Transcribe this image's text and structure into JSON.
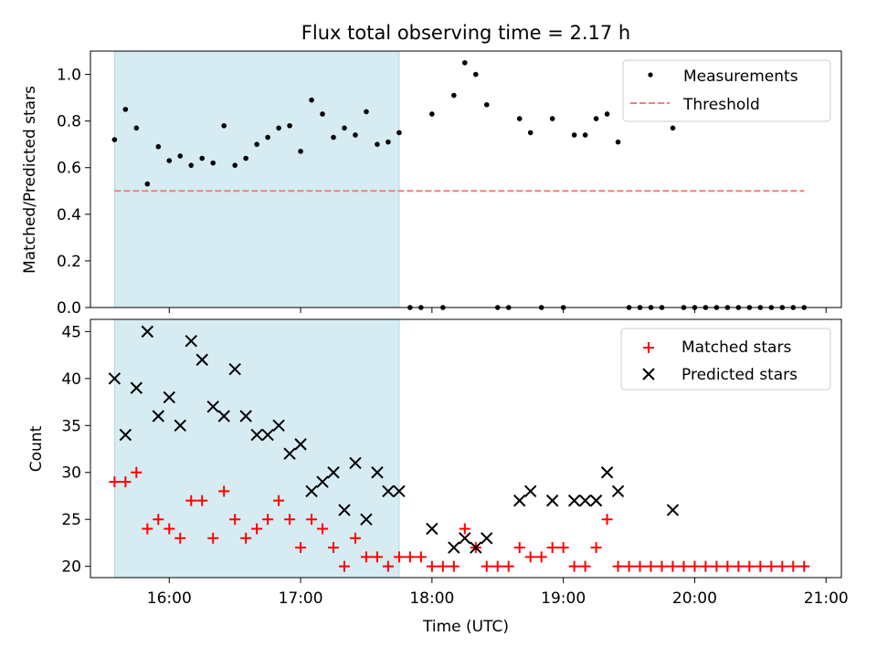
{
  "chart_data": [
    {
      "type": "scatter",
      "title": "Flux total observing time = 2.17 h",
      "xlabel": "",
      "ylabel": "Matched/Predicted stars",
      "xlim": [
        "15:24",
        "21:07"
      ],
      "ylim": [
        0.0,
        1.1
      ],
      "yticks": [
        "0.0",
        "0.2",
        "0.4",
        "0.6",
        "0.8",
        "1.0"
      ],
      "shaded_interval": [
        "15:35",
        "17:45"
      ],
      "legend": {
        "placement": "top-right",
        "entries": [
          "Measurements",
          "Threshold"
        ]
      },
      "series": [
        {
          "name": "Measurements",
          "color": "#000000",
          "marker": "dot",
          "x": [
            "15:35",
            "15:40",
            "15:45",
            "15:50",
            "15:55",
            "16:00",
            "16:05",
            "16:10",
            "16:15",
            "16:20",
            "16:25",
            "16:30",
            "16:35",
            "16:40",
            "16:45",
            "16:50",
            "16:55",
            "17:00",
            "17:05",
            "17:10",
            "17:15",
            "17:20",
            "17:25",
            "17:30",
            "17:35",
            "17:40",
            "17:45",
            "17:50",
            "17:55",
            "18:00",
            "18:05",
            "18:10",
            "18:15",
            "18:20",
            "18:25",
            "18:30",
            "18:35",
            "18:40",
            "18:45",
            "18:50",
            "18:55",
            "19:00",
            "19:05",
            "19:10",
            "19:15",
            "19:20",
            "19:25",
            "19:30",
            "19:35",
            "19:40",
            "19:45",
            "19:50",
            "19:55",
            "20:00",
            "20:05",
            "20:10",
            "20:15",
            "20:20",
            "20:25",
            "20:30",
            "20:35",
            "20:40",
            "20:45",
            "20:50"
          ],
          "y": [
            0.72,
            0.85,
            0.77,
            0.53,
            0.69,
            0.63,
            0.65,
            0.61,
            0.64,
            0.62,
            0.78,
            0.61,
            0.64,
            0.7,
            0.73,
            0.77,
            0.78,
            0.67,
            0.89,
            0.83,
            0.73,
            0.77,
            0.74,
            0.84,
            0.7,
            0.71,
            0.75,
            0.0,
            0.0,
            0.83,
            0.0,
            0.91,
            1.05,
            1.0,
            0.87,
            0.0,
            0.0,
            0.81,
            0.75,
            0.0,
            0.81,
            0.0,
            0.74,
            0.74,
            0.81,
            0.83,
            0.71,
            0.0,
            0.0,
            0.0,
            0.0,
            0.77,
            0.0,
            0.0,
            0.0,
            0.0,
            0.0,
            0.0,
            0.0,
            0.0,
            0.0,
            0.0,
            0.0,
            0.0
          ]
        },
        {
          "name": "Threshold",
          "color": "#f08080",
          "style": "dashed",
          "x": [
            "15:35",
            "20:50"
          ],
          "y": [
            0.5,
            0.5
          ]
        }
      ]
    },
    {
      "type": "scatter",
      "title": "",
      "xlabel": "Time (UTC)",
      "ylabel": "Count",
      "xlim": [
        "15:24",
        "21:07"
      ],
      "ylim": [
        18.8,
        46.3
      ],
      "yticks": [
        "20",
        "25",
        "30",
        "35",
        "40",
        "45"
      ],
      "xticks": [
        "16:00",
        "17:00",
        "18:00",
        "19:00",
        "20:00",
        "21:00"
      ],
      "shaded_interval": [
        "15:35",
        "17:45"
      ],
      "legend": {
        "placement": "top-right",
        "entries": [
          "Matched stars",
          "Predicted stars"
        ]
      },
      "series": [
        {
          "name": "Matched stars",
          "color": "#ff0000",
          "marker": "plus",
          "x": [
            "15:35",
            "15:40",
            "15:45",
            "15:50",
            "15:55",
            "16:00",
            "16:05",
            "16:10",
            "16:15",
            "16:20",
            "16:25",
            "16:30",
            "16:35",
            "16:40",
            "16:45",
            "16:50",
            "16:55",
            "17:00",
            "17:05",
            "17:10",
            "17:15",
            "17:20",
            "17:25",
            "17:30",
            "17:35",
            "17:40",
            "17:45",
            "17:50",
            "17:55",
            "18:00",
            "18:05",
            "18:10",
            "18:15",
            "18:20",
            "18:25",
            "18:30",
            "18:35",
            "18:40",
            "18:45",
            "18:50",
            "18:55",
            "19:00",
            "19:05",
            "19:10",
            "19:15",
            "19:20",
            "19:25",
            "19:30",
            "19:35",
            "19:40",
            "19:45",
            "19:50",
            "19:55",
            "20:00",
            "20:05",
            "20:10",
            "20:15",
            "20:20",
            "20:25",
            "20:30",
            "20:35",
            "20:40",
            "20:45",
            "20:50"
          ],
          "y": [
            29,
            29,
            30,
            24,
            25,
            24,
            23,
            27,
            27,
            23,
            28,
            25,
            23,
            24,
            25,
            27,
            25,
            22,
            25,
            24,
            22,
            20,
            23,
            21,
            21,
            20,
            21,
            21,
            21,
            20,
            20,
            20,
            24,
            22,
            20,
            20,
            20,
            22,
            21,
            21,
            22,
            22,
            20,
            20,
            22,
            25,
            20,
            20,
            20,
            20,
            20,
            20,
            20,
            20,
            20,
            20,
            20,
            20,
            20,
            20,
            20,
            20,
            20,
            20
          ]
        },
        {
          "name": "Predicted stars",
          "color": "#000000",
          "marker": "x",
          "x": [
            "15:35",
            "15:40",
            "15:45",
            "15:50",
            "15:55",
            "16:00",
            "16:05",
            "16:10",
            "16:15",
            "16:20",
            "16:25",
            "16:30",
            "16:35",
            "16:40",
            "16:45",
            "16:50",
            "16:55",
            "17:00",
            "17:05",
            "17:10",
            "17:15",
            "17:20",
            "17:25",
            "17:30",
            "17:35",
            "17:40",
            "17:45",
            "18:00",
            "18:10",
            "18:15",
            "18:20",
            "18:25",
            "18:40",
            "18:45",
            "18:55",
            "19:05",
            "19:10",
            "19:15",
            "19:20",
            "19:25",
            "19:50"
          ],
          "y": [
            40,
            34,
            39,
            45,
            36,
            38,
            35,
            44,
            42,
            37,
            36,
            41,
            36,
            34,
            34,
            35,
            32,
            33,
            28,
            29,
            30,
            26,
            31,
            25,
            30,
            28,
            28,
            24,
            22,
            23,
            22,
            23,
            27,
            28,
            27,
            27,
            27,
            27,
            30,
            28,
            26
          ]
        }
      ]
    }
  ]
}
